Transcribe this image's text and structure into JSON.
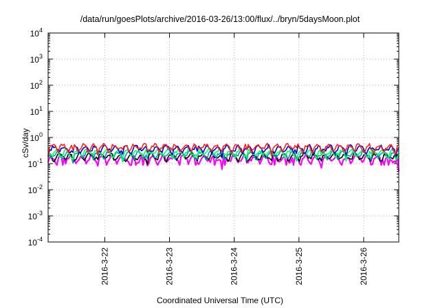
{
  "chart_data": {
    "type": "line",
    "title": "/data/run/goesPlots/archive/2016-03-26/13:00/flux/../bryn/5daysMoon.plot",
    "xlabel": "Coordinated Universal Time (UTC)",
    "ylabel": "cSv/day",
    "y_scale": "log",
    "ylim": [
      0.0001,
      10000
    ],
    "xlim": [
      "2016-03-21 03:00",
      "2016-03-26 13:00"
    ],
    "grid": true,
    "legend": "none",
    "x_tick_labels": [
      "2016-3-22",
      "2016-3-23",
      "2016-3-24",
      "2016-3-25",
      "2016-3-26"
    ],
    "x_tick_dates": [
      "2016-03-22",
      "2016-03-23",
      "2016-03-24",
      "2016-03-25",
      "2016-03-26"
    ],
    "y_ticks": [
      {
        "value": 0.0001,
        "base": "10",
        "exp": "-4"
      },
      {
        "value": 0.001,
        "base": "10",
        "exp": "-3"
      },
      {
        "value": 0.01,
        "base": "10",
        "exp": "-2"
      },
      {
        "value": 0.1,
        "base": "10",
        "exp": "-1"
      },
      {
        "value": 1,
        "base": "10",
        "exp": "0"
      },
      {
        "value": 10,
        "base": "10",
        "exp": "1"
      },
      {
        "value": 100,
        "base": "10",
        "exp": "2"
      },
      {
        "value": 1000,
        "base": "10",
        "exp": "3"
      },
      {
        "value": 10000,
        "base": "10",
        "exp": "4"
      }
    ],
    "series": [
      {
        "color": "#ff00ff",
        "base_value": 0.16,
        "spike_min": 0.05
      },
      {
        "color": "#000000",
        "base_value": 0.19
      },
      {
        "color": "#00a0a0",
        "base_value": 0.23
      },
      {
        "color": "#00ff66",
        "base_value": 0.27
      },
      {
        "color": "#0000cc",
        "base_value": 0.38
      },
      {
        "color": "#ff2020",
        "base_value": 0.43
      }
    ]
  }
}
